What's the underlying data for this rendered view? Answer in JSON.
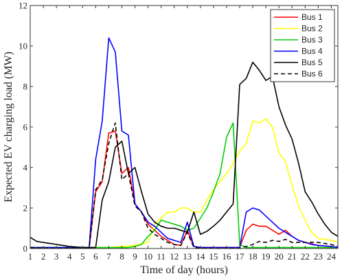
{
  "chart_data": {
    "type": "line",
    "xlabel": "Time of day (hours)",
    "ylabel": "Expected EV charging load  (MW)",
    "xlim": [
      1,
      24.5
    ],
    "ylim": [
      0,
      12
    ],
    "x_ticks": [
      "1",
      "2",
      "3",
      "4",
      "5",
      "6",
      "7",
      "8",
      "9",
      "10",
      "11",
      "12",
      "13",
      "14",
      "15",
      "16",
      "17",
      "18",
      "19",
      "20",
      "21",
      "22",
      "23",
      "24"
    ],
    "y_ticks": [
      "0",
      "2",
      "4",
      "6",
      "8",
      "10",
      "12"
    ],
    "grid": false,
    "legend_position": "top-right",
    "series": [
      {
        "name": "Bus 1",
        "color": "#ff0000",
        "dash": "solid",
        "x": [
          1,
          2,
          3,
          4,
          5,
          5.5,
          6,
          6.5,
          7,
          7.5,
          8,
          8.5,
          9,
          9.5,
          10,
          10.5,
          11,
          11.5,
          12,
          12.5,
          13,
          13.5,
          14,
          15,
          16,
          17,
          17.5,
          18,
          18.5,
          19,
          19.5,
          20,
          20.5,
          21,
          21.5,
          22,
          23,
          24,
          24.5
        ],
        "y": [
          0.05,
          0.03,
          0.02,
          0.02,
          0.01,
          0.01,
          2.8,
          3.3,
          5.7,
          5.8,
          3.7,
          4.0,
          2.2,
          1.8,
          1.2,
          0.9,
          0.6,
          0.4,
          0.2,
          0.15,
          0.9,
          0.1,
          0.05,
          0.05,
          0.05,
          0.05,
          0.9,
          1.2,
          1.1,
          1.1,
          0.9,
          0.7,
          0.9,
          0.6,
          0.4,
          0.3,
          0.15,
          0.1,
          0.05
        ]
      },
      {
        "name": "Bus 2",
        "color": "#ffff00",
        "dash": "solid",
        "x": [
          1,
          2,
          3,
          4,
          5,
          6,
          7,
          8,
          9,
          10,
          10.5,
          11,
          11.5,
          12,
          12.5,
          13,
          13.5,
          14,
          14.5,
          15,
          15.5,
          16,
          16.5,
          17,
          17.5,
          18,
          18.5,
          19,
          19.5,
          20,
          20.5,
          21,
          21.5,
          22,
          22.5,
          23,
          24,
          24.5
        ],
        "y": [
          0.05,
          0.05,
          0.05,
          0.05,
          0.05,
          0.05,
          0.05,
          0.1,
          0.15,
          0.3,
          1.2,
          1.5,
          1.8,
          1.8,
          2.0,
          2.0,
          1.8,
          1.8,
          2.4,
          2.9,
          3.3,
          3.7,
          4.2,
          4.8,
          5.2,
          6.3,
          6.2,
          6.4,
          6.0,
          4.7,
          4.3,
          3.1,
          2.1,
          1.4,
          0.8,
          0.5,
          0.4,
          0.3
        ]
      },
      {
        "name": "Bus 3",
        "color": "#00cc00",
        "dash": "solid",
        "x": [
          1,
          2,
          3,
          4,
          5,
          6,
          7,
          7.5,
          8,
          8.5,
          9,
          9.5,
          10,
          10.5,
          11,
          11.5,
          12,
          12.5,
          13,
          13.5,
          14,
          14.5,
          15,
          15.5,
          16,
          16.5,
          17,
          17.5,
          18,
          19,
          20,
          21,
          22,
          23,
          24,
          24.5
        ],
        "y": [
          0.05,
          0.05,
          0.05,
          0.05,
          0.05,
          0.05,
          0.05,
          0.05,
          0.05,
          0.05,
          0.1,
          0.2,
          0.6,
          0.9,
          1.4,
          1.3,
          1.2,
          1.1,
          0.9,
          1.0,
          1.5,
          2.0,
          2.8,
          3.7,
          5.5,
          6.2,
          0.2,
          0.05,
          0.05,
          0.05,
          0.05,
          0.05,
          0.05,
          0.05,
          0.05,
          0.05
        ]
      },
      {
        "name": "Bus 4",
        "color": "#0000ff",
        "dash": "solid",
        "x": [
          1,
          2,
          3,
          4,
          5,
          5.5,
          6,
          6.5,
          7,
          7.5,
          8,
          8.5,
          9,
          9.5,
          10,
          10.5,
          11,
          11.5,
          12,
          12.5,
          13,
          13.5,
          14,
          15,
          16,
          17,
          17.5,
          18,
          18.5,
          19,
          19.5,
          20,
          20.5,
          21,
          21.5,
          22,
          22.5,
          23,
          24,
          24.5
        ],
        "y": [
          0.05,
          0.05,
          0.05,
          0.05,
          0.05,
          0.05,
          4.4,
          6.3,
          10.4,
          9.7,
          5.8,
          5.6,
          2.2,
          1.8,
          1.3,
          1.1,
          0.8,
          0.5,
          0.4,
          0.3,
          1.3,
          0.1,
          0.05,
          0.05,
          0.05,
          0.05,
          1.8,
          2.0,
          1.9,
          1.6,
          1.3,
          1.0,
          0.8,
          0.6,
          0.4,
          0.3,
          0.2,
          0.15,
          0.1,
          0.05
        ]
      },
      {
        "name": "Bus 5",
        "color": "#000000",
        "dash": "solid",
        "x": [
          1,
          1.5,
          2,
          3,
          4,
          5,
          6,
          6.5,
          7,
          7.5,
          8,
          8.5,
          9,
          9.5,
          10,
          10.5,
          11,
          11.5,
          12,
          12.5,
          13,
          13.5,
          14,
          14.5,
          15,
          15.5,
          16,
          16.5,
          17,
          17.5,
          18,
          18.5,
          19,
          19.5,
          20,
          20.5,
          21,
          21.5,
          22,
          22.5,
          23,
          23.5,
          24,
          24.5
        ],
        "y": [
          0.55,
          0.35,
          0.3,
          0.2,
          0.1,
          0.05,
          0.05,
          2.4,
          3.3,
          5.0,
          5.3,
          3.7,
          4.0,
          2.8,
          1.7,
          1.3,
          1.1,
          1.0,
          1.0,
          0.9,
          0.8,
          1.8,
          0.7,
          0.85,
          1.1,
          1.4,
          1.8,
          2.2,
          8.1,
          8.4,
          9.2,
          8.8,
          8.3,
          8.5,
          7.0,
          6.1,
          5.4,
          4.2,
          2.8,
          2.3,
          1.7,
          1.2,
          0.8,
          0.6
        ]
      },
      {
        "name": "Bus 6",
        "color": "#000000",
        "dash": "dashed",
        "x": [
          1,
          2,
          3,
          4,
          5,
          5.5,
          6,
          6.5,
          7,
          7.5,
          8,
          8.5,
          9,
          9.5,
          10,
          10.5,
          11,
          11.5,
          12,
          12.5,
          13,
          13.5,
          14,
          15,
          16,
          17,
          17.5,
          18,
          18.5,
          19,
          19.5,
          20,
          20.5,
          21,
          21.5,
          22,
          23,
          24,
          24.5
        ],
        "y": [
          0.05,
          0.03,
          0.02,
          0.02,
          0.01,
          0.01,
          2.9,
          3.4,
          5.2,
          6.2,
          3.4,
          3.7,
          2.1,
          1.8,
          1.0,
          0.7,
          0.5,
          0.3,
          0.2,
          0.15,
          0.8,
          0.05,
          0.02,
          0.02,
          0.02,
          0.02,
          0.1,
          0.2,
          0.35,
          0.3,
          0.4,
          0.35,
          0.45,
          0.3,
          0.3,
          0.3,
          0.3,
          0.2,
          0.1
        ]
      }
    ]
  }
}
